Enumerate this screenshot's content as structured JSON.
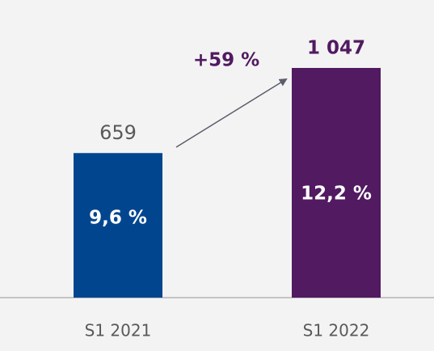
{
  "chart_data": {
    "type": "bar",
    "categories": [
      "S1 2021",
      "S1 2022"
    ],
    "values": [
      659,
      1047
    ],
    "value_labels": [
      "659",
      "1 047"
    ],
    "inner_labels": [
      "9,6 %",
      "12,2 %"
    ],
    "colors": [
      "#02458f",
      "#511a61"
    ],
    "annotation": "+59 %"
  }
}
